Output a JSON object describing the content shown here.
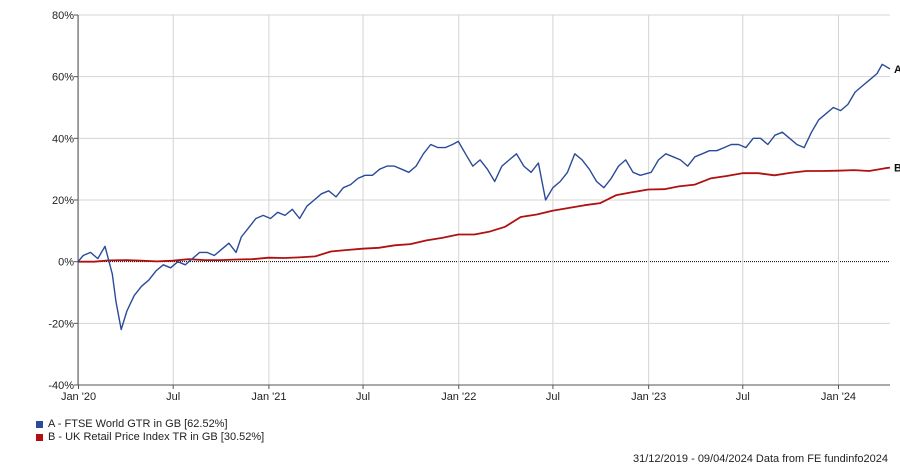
{
  "chart_data": {
    "type": "line",
    "ylim": [
      -40,
      80
    ],
    "y_ticks": [
      -40,
      -20,
      0,
      20,
      40,
      60,
      80
    ],
    "y_tick_labels": [
      "-40%",
      "-20%",
      "0%",
      "20%",
      "40%",
      "60%",
      "80%"
    ],
    "x_range": [
      "2019-12-31",
      "2024-04-09"
    ],
    "x_ticks": [
      "2020-01-01",
      "2020-07-01",
      "2021-01-01",
      "2021-07-01",
      "2022-01-01",
      "2022-07-01",
      "2023-01-01",
      "2023-07-01",
      "2024-01-01"
    ],
    "x_tick_labels": [
      "Jan '20",
      "Jul",
      "Jan '21",
      "Jul",
      "Jan '22",
      "Jul",
      "Jan '23",
      "Jul",
      "Jan '24"
    ],
    "grid": true,
    "series": [
      {
        "name": "A - FTSE World GTR in GB [62.52%]",
        "end_label": "A",
        "color": "#2a4a9a",
        "points": [
          [
            "2019-12-31",
            0
          ],
          [
            "2020-01-10",
            2
          ],
          [
            "2020-01-24",
            3
          ],
          [
            "2020-02-07",
            1
          ],
          [
            "2020-02-21",
            5
          ],
          [
            "2020-03-06",
            -4
          ],
          [
            "2020-03-13",
            -13
          ],
          [
            "2020-03-23",
            -22
          ],
          [
            "2020-04-03",
            -16
          ],
          [
            "2020-04-17",
            -11
          ],
          [
            "2020-05-01",
            -8
          ],
          [
            "2020-05-15",
            -6
          ],
          [
            "2020-05-29",
            -3
          ],
          [
            "2020-06-12",
            -1
          ],
          [
            "2020-06-26",
            -2
          ],
          [
            "2020-07-10",
            0
          ],
          [
            "2020-07-24",
            -1
          ],
          [
            "2020-08-07",
            1
          ],
          [
            "2020-08-21",
            3
          ],
          [
            "2020-09-04",
            3
          ],
          [
            "2020-09-18",
            2
          ],
          [
            "2020-10-02",
            4
          ],
          [
            "2020-10-16",
            6
          ],
          [
            "2020-10-30",
            3
          ],
          [
            "2020-11-09",
            8
          ],
          [
            "2020-11-23",
            11
          ],
          [
            "2020-12-07",
            14
          ],
          [
            "2020-12-21",
            15
          ],
          [
            "2021-01-04",
            14
          ],
          [
            "2021-01-18",
            16
          ],
          [
            "2021-02-01",
            15
          ],
          [
            "2021-02-15",
            17
          ],
          [
            "2021-03-01",
            14
          ],
          [
            "2021-03-15",
            18
          ],
          [
            "2021-03-29",
            20
          ],
          [
            "2021-04-12",
            22
          ],
          [
            "2021-04-26",
            23
          ],
          [
            "2021-05-10",
            21
          ],
          [
            "2021-05-24",
            24
          ],
          [
            "2021-06-07",
            25
          ],
          [
            "2021-06-21",
            27
          ],
          [
            "2021-07-05",
            28
          ],
          [
            "2021-07-19",
            28
          ],
          [
            "2021-08-02",
            30
          ],
          [
            "2021-08-16",
            31
          ],
          [
            "2021-08-30",
            31
          ],
          [
            "2021-09-13",
            30
          ],
          [
            "2021-09-27",
            29
          ],
          [
            "2021-10-11",
            31
          ],
          [
            "2021-10-25",
            35
          ],
          [
            "2021-11-08",
            38
          ],
          [
            "2021-11-22",
            37
          ],
          [
            "2021-12-06",
            37
          ],
          [
            "2021-12-20",
            38
          ],
          [
            "2021-12-31",
            39
          ],
          [
            "2022-01-14",
            35
          ],
          [
            "2022-01-28",
            31
          ],
          [
            "2022-02-11",
            33
          ],
          [
            "2022-02-25",
            30
          ],
          [
            "2022-03-11",
            26
          ],
          [
            "2022-03-25",
            31
          ],
          [
            "2022-04-08",
            33
          ],
          [
            "2022-04-22",
            35
          ],
          [
            "2022-05-06",
            31
          ],
          [
            "2022-05-20",
            29
          ],
          [
            "2022-06-03",
            32
          ],
          [
            "2022-06-17",
            20
          ],
          [
            "2022-07-01",
            24
          ],
          [
            "2022-07-15",
            26
          ],
          [
            "2022-07-29",
            29
          ],
          [
            "2022-08-12",
            35
          ],
          [
            "2022-08-26",
            33
          ],
          [
            "2022-09-09",
            30
          ],
          [
            "2022-09-23",
            26
          ],
          [
            "2022-10-07",
            24
          ],
          [
            "2022-10-21",
            27
          ],
          [
            "2022-11-04",
            31
          ],
          [
            "2022-11-18",
            33
          ],
          [
            "2022-12-02",
            29
          ],
          [
            "2022-12-16",
            28
          ],
          [
            "2023-01-06",
            29
          ],
          [
            "2023-01-20",
            33
          ],
          [
            "2023-02-03",
            35
          ],
          [
            "2023-02-17",
            34
          ],
          [
            "2023-03-03",
            33
          ],
          [
            "2023-03-17",
            31
          ],
          [
            "2023-03-31",
            34
          ],
          [
            "2023-04-14",
            35
          ],
          [
            "2023-04-28",
            36
          ],
          [
            "2023-05-12",
            36
          ],
          [
            "2023-05-26",
            37
          ],
          [
            "2023-06-09",
            38
          ],
          [
            "2023-06-23",
            38
          ],
          [
            "2023-07-07",
            37
          ],
          [
            "2023-07-21",
            40
          ],
          [
            "2023-08-04",
            40
          ],
          [
            "2023-08-18",
            38
          ],
          [
            "2023-09-01",
            41
          ],
          [
            "2023-09-15",
            42
          ],
          [
            "2023-09-29",
            40
          ],
          [
            "2023-10-13",
            38
          ],
          [
            "2023-10-27",
            37
          ],
          [
            "2023-11-10",
            42
          ],
          [
            "2023-11-24",
            46
          ],
          [
            "2023-12-08",
            48
          ],
          [
            "2023-12-22",
            50
          ],
          [
            "2024-01-05",
            49
          ],
          [
            "2024-01-19",
            51
          ],
          [
            "2024-02-02",
            55
          ],
          [
            "2024-02-16",
            57
          ],
          [
            "2024-03-01",
            59
          ],
          [
            "2024-03-15",
            61
          ],
          [
            "2024-03-25",
            64
          ],
          [
            "2024-04-09",
            62.52
          ]
        ]
      },
      {
        "name": "B - UK Retail Price Index TR in GB [30.52%]",
        "end_label": "B",
        "color": "#b01010",
        "points": [
          [
            "2019-12-31",
            0
          ],
          [
            "2020-01-31",
            0
          ],
          [
            "2020-02-29",
            0.4
          ],
          [
            "2020-03-31",
            0.5
          ],
          [
            "2020-04-30",
            0.3
          ],
          [
            "2020-05-31",
            0.1
          ],
          [
            "2020-06-30",
            0.3
          ],
          [
            "2020-07-31",
            0.8
          ],
          [
            "2020-08-31",
            0.5
          ],
          [
            "2020-09-30",
            0.5
          ],
          [
            "2020-10-31",
            0.7
          ],
          [
            "2020-11-30",
            0.8
          ],
          [
            "2020-12-31",
            1.3
          ],
          [
            "2021-01-31",
            1.2
          ],
          [
            "2021-02-28",
            1.4
          ],
          [
            "2021-03-31",
            1.7
          ],
          [
            "2021-04-30",
            3.3
          ],
          [
            "2021-05-31",
            3.8
          ],
          [
            "2021-06-30",
            4.2
          ],
          [
            "2021-07-31",
            4.5
          ],
          [
            "2021-08-31",
            5.3
          ],
          [
            "2021-09-30",
            5.7
          ],
          [
            "2021-10-31",
            6.9
          ],
          [
            "2021-11-30",
            7.7
          ],
          [
            "2021-12-31",
            8.8
          ],
          [
            "2022-01-31",
            8.8
          ],
          [
            "2022-02-28",
            9.7
          ],
          [
            "2022-03-31",
            11.3
          ],
          [
            "2022-04-30",
            14.5
          ],
          [
            "2022-05-31",
            15.3
          ],
          [
            "2022-06-30",
            16.5
          ],
          [
            "2022-07-31",
            17.4
          ],
          [
            "2022-08-31",
            18.3
          ],
          [
            "2022-09-30",
            19.0
          ],
          [
            "2022-10-31",
            21.6
          ],
          [
            "2022-11-30",
            22.5
          ],
          [
            "2022-12-31",
            23.4
          ],
          [
            "2023-01-31",
            23.5
          ],
          [
            "2023-02-28",
            24.4
          ],
          [
            "2023-03-31",
            25.0
          ],
          [
            "2023-04-30",
            27.0
          ],
          [
            "2023-05-31",
            27.8
          ],
          [
            "2023-06-30",
            28.7
          ],
          [
            "2023-07-31",
            28.7
          ],
          [
            "2023-08-31",
            28.0
          ],
          [
            "2023-09-30",
            28.8
          ],
          [
            "2023-10-31",
            29.4
          ],
          [
            "2023-11-30",
            29.4
          ],
          [
            "2023-12-31",
            29.5
          ],
          [
            "2024-01-31",
            29.7
          ],
          [
            "2024-02-29",
            29.4
          ],
          [
            "2024-03-31",
            30.3
          ],
          [
            "2024-04-09",
            30.52
          ]
        ]
      }
    ]
  },
  "footer_text": "31/12/2019 - 09/04/2024 Data from FE fundinfo2024"
}
